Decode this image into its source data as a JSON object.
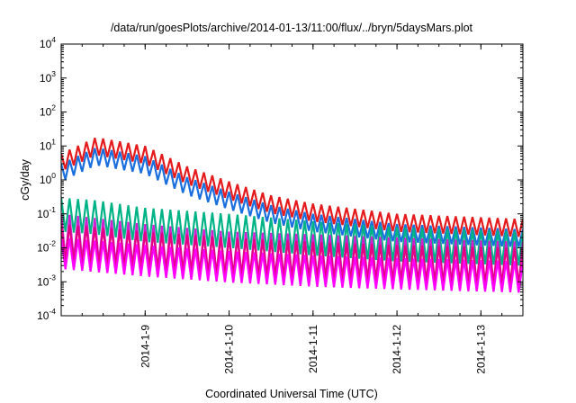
{
  "chart_data": {
    "type": "line",
    "title": "/data/run/goesPlots/archive/2014-01-13/11:00/flux/../bryn/5daysMars.plot",
    "xlabel": "Coordinated Universal Time (UTC)",
    "ylabel": "cGy/day",
    "x_range": [
      "2014-01-08 00:00",
      "2014-01-13 12:00"
    ],
    "x_ticks": [
      "2014-1-9",
      "2014-1-10",
      "2014-1-11",
      "2014-1-12",
      "2014-1-13"
    ],
    "y_scale": "log",
    "ylim": [
      0.0001,
      10000
    ],
    "y_tick_bases": [
      "10",
      "10",
      "10",
      "10",
      "10",
      "10",
      "10",
      "10",
      "10"
    ],
    "y_tick_exponents": [
      "-4",
      "-3",
      "-2",
      "-1",
      "0",
      "1",
      "2",
      "3",
      "4"
    ],
    "y_tick_values": [
      0.0001,
      0.001,
      0.01,
      0.1,
      1,
      10,
      100,
      1000,
      10000
    ],
    "grid": false,
    "oscillation_period_hours": 2.4,
    "series": [
      {
        "color": "#e41a1c",
        "peak_x": [
          "2014-01-08 00:00",
          "2014-01-08 10:00",
          "2014-01-09 00:00",
          "2014-01-09 12:00",
          "2014-01-10 00:00",
          "2014-01-10 12:00",
          "2014-01-11 00:00",
          "2014-01-12 00:00",
          "2014-01-13 12:00"
        ],
        "peak_y": [
          6,
          18,
          10,
          2.5,
          0.9,
          0.35,
          0.2,
          0.1,
          0.07
        ],
        "trough_ratio": 0.3
      },
      {
        "color": "#1a6fdf",
        "peak_x": [
          "2014-01-08 00:00",
          "2014-01-08 10:00",
          "2014-01-09 00:00",
          "2014-01-09 12:00",
          "2014-01-10 00:00",
          "2014-01-10 12:00",
          "2014-01-11 00:00",
          "2014-01-12 00:00",
          "2014-01-13 12:00"
        ],
        "peak_y": [
          3,
          9,
          5,
          1.2,
          0.45,
          0.18,
          0.1,
          0.05,
          0.035
        ],
        "trough_ratio": 0.3
      },
      {
        "color": "#00b386",
        "peak_x": [
          "2014-01-08 00:00",
          "2014-01-08 10:00",
          "2014-01-09 00:00",
          "2014-01-10 00:00",
          "2014-01-11 00:00",
          "2014-01-12 00:00",
          "2014-01-13 12:00"
        ],
        "peak_y": [
          0.3,
          0.25,
          0.15,
          0.1,
          0.06,
          0.04,
          0.03
        ],
        "trough_ratio": 0.1
      },
      {
        "color": "#d020d0",
        "peak_x": [
          "2014-01-08 00:00",
          "2014-01-09 00:00",
          "2014-01-10 00:00",
          "2014-01-11 00:00",
          "2014-01-12 00:00",
          "2014-01-13 12:00"
        ],
        "peak_y": [
          0.1,
          0.05,
          0.03,
          0.025,
          0.02,
          0.015
        ],
        "trough_ratio": 0.05
      },
      {
        "color": "#e5007f",
        "peak_x": [
          "2014-01-08 00:00",
          "2014-01-09 00:00",
          "2014-01-10 00:00",
          "2014-01-11 00:00",
          "2014-01-12 00:00",
          "2014-01-13 12:00"
        ],
        "peak_y": [
          0.05,
          0.03,
          0.02,
          0.015,
          0.012,
          0.01
        ],
        "trough_ratio": 0.08
      },
      {
        "color": "#ff00ff",
        "peak_x": [
          "2014-01-08 00:00",
          "2014-01-09 00:00",
          "2014-01-10 00:00",
          "2014-01-11 00:00",
          "2014-01-12 00:00",
          "2014-01-13 12:00"
        ],
        "peak_y": [
          0.02,
          0.012,
          0.008,
          0.006,
          0.005,
          0.004
        ],
        "trough_ratio": 0.12
      }
    ]
  }
}
